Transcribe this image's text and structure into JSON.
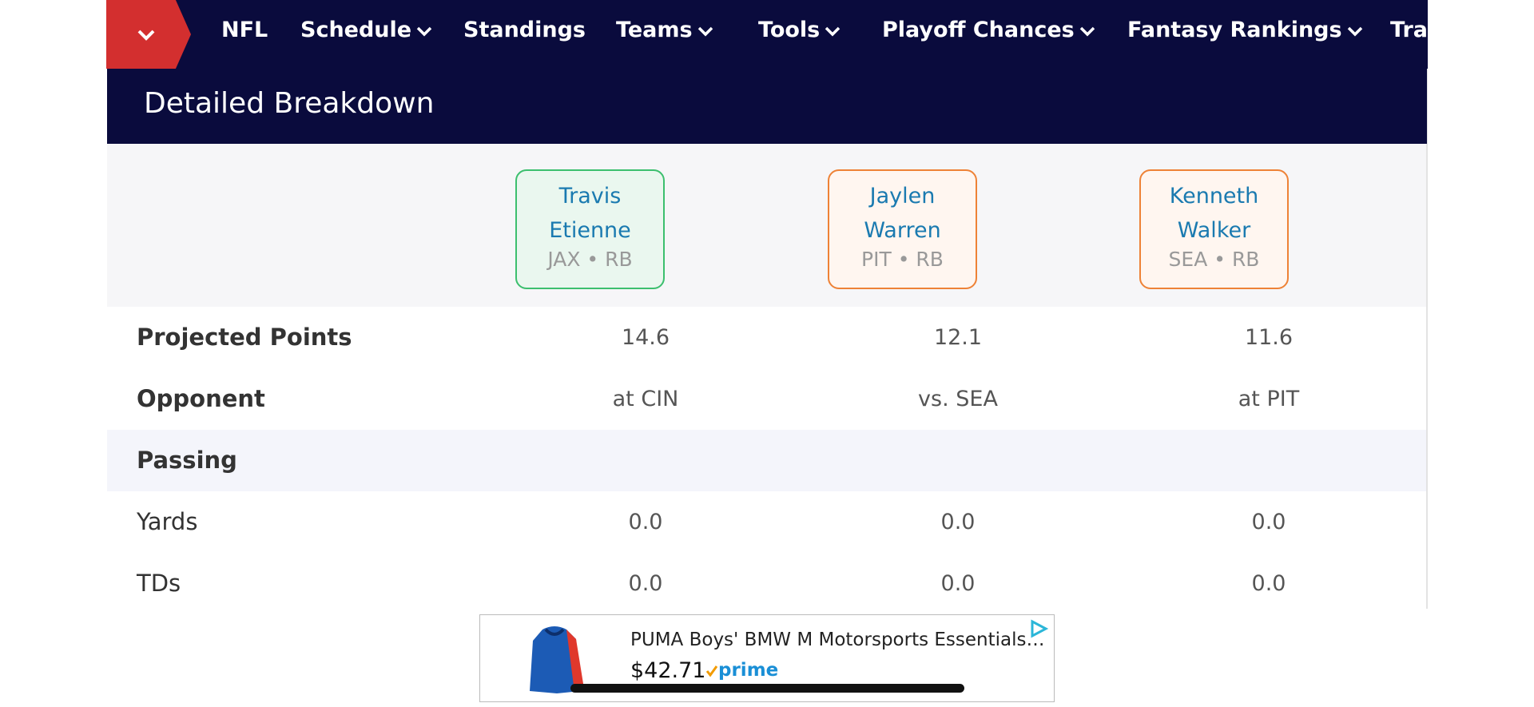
{
  "nav": [
    "NFL",
    "Schedule",
    "Standings",
    "Teams",
    "Tools",
    "Playoff Chances",
    "Fantasy Rankings",
    "Tra"
  ],
  "header": {
    "title": "Detailed Breakdown"
  },
  "players": [
    {
      "first": "Travis",
      "last": "Etienne",
      "team": "JAX • RB"
    },
    {
      "first": "Jaylen",
      "last": "Warren",
      "team": "PIT • RB"
    },
    {
      "first": "Kenneth",
      "last": "Walker",
      "team": "SEA • RB"
    }
  ],
  "rows": [
    {
      "label": "Projected Points",
      "values": [
        "14.6",
        "12.1",
        "11.6"
      ]
    },
    {
      "label": "Opponent",
      "values": [
        "at CIN",
        "vs. SEA",
        "at PIT"
      ]
    },
    {
      "label": "Passing"
    },
    {
      "label": "Yards",
      "values": [
        "0.0",
        "0.0",
        "0.0"
      ]
    },
    {
      "label": "TDs",
      "values": [
        "0.0",
        "0.0",
        "0.0"
      ]
    }
  ],
  "ad": {
    "title": "PUMA Boys' BMW M Motorsports Essentials…",
    "price": "$42.71",
    "badge": "prime"
  }
}
